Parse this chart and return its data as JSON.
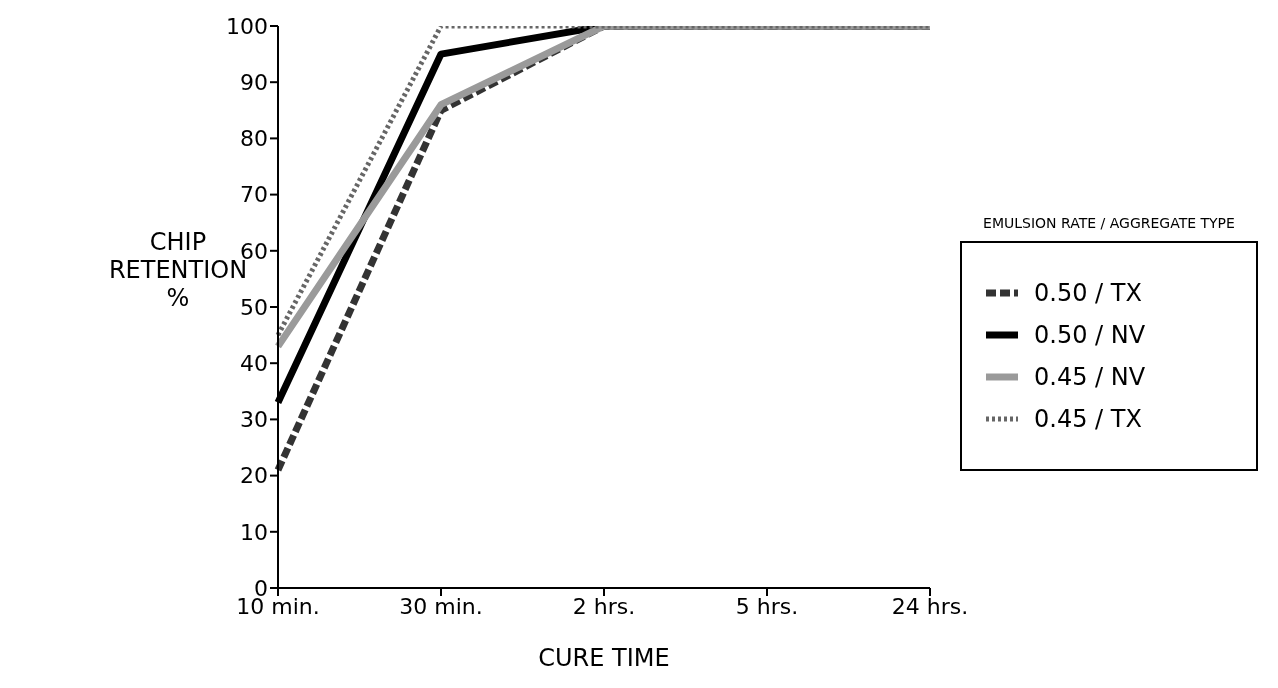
{
  "chart_data": {
    "type": "line",
    "xlabel": "CURE TIME",
    "ylabel": "CHIP RETENTION %",
    "legend_title": "EMULSION RATE / AGGREGATE TYPE",
    "categories": [
      "10 min.",
      "30 min.",
      "2 hrs.",
      "5 hrs.",
      "24 hrs."
    ],
    "series": [
      {
        "name": "0.50 / TX",
        "color": "#333333",
        "line_style": "dashed",
        "values": [
          21,
          85,
          100,
          100,
          100
        ]
      },
      {
        "name": "0.50 / NV",
        "color": "#000000",
        "line_style": "solid",
        "values": [
          33,
          95,
          100,
          100,
          100
        ]
      },
      {
        "name": "0.45 / NV",
        "color": "#9a9a9a",
        "line_style": "solid",
        "values": [
          43,
          86,
          100,
          100,
          100
        ]
      },
      {
        "name": "0.45 / TX",
        "color": "#666666",
        "line_style": "dotted",
        "values": [
          45,
          100,
          100,
          100,
          100
        ]
      }
    ],
    "ylim": [
      0,
      100
    ],
    "yticks": [
      0,
      10,
      20,
      30,
      40,
      50,
      60,
      70,
      80,
      90,
      100
    ],
    "legend": "right",
    "marker": "none"
  }
}
